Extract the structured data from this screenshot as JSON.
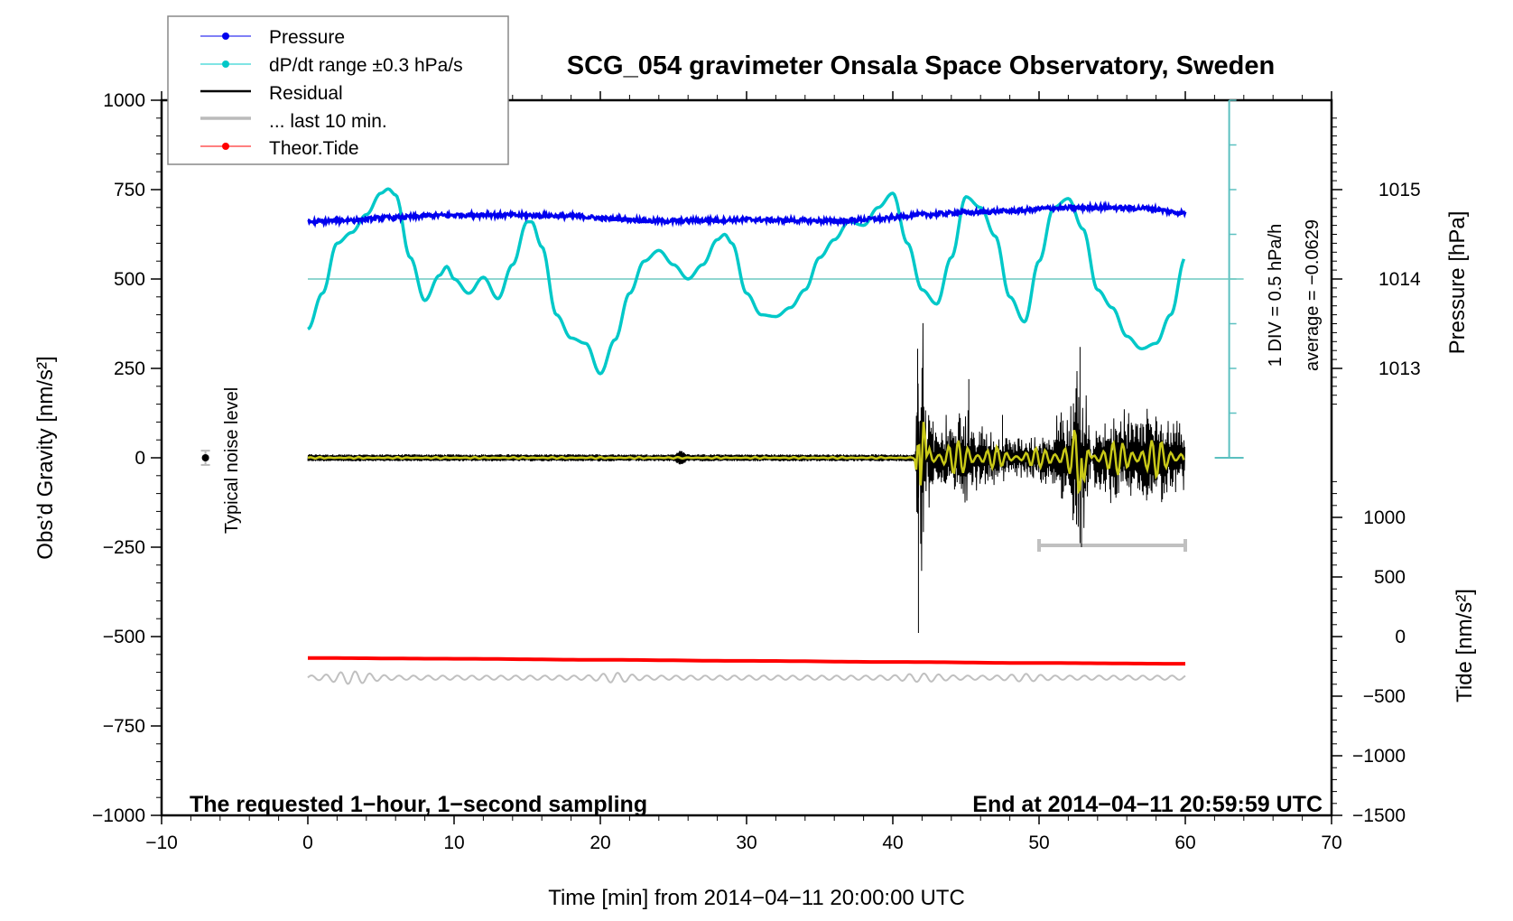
{
  "chart_data": {
    "type": "line",
    "title": "SCG_054 gravimeter Onsala Space Observatory, Sweden",
    "xlabel": "Time [min] from 2014−04−11 20:00:00 UTC",
    "ylabel_left": "Obs’d Gravity [nm/s²]",
    "ylabel_right_pressure": "Pressure [hPa]",
    "ylabel_right_tide": "Tide [nm/s²]",
    "xlim": [
      -10,
      70
    ],
    "ylim": [
      -1000,
      1000
    ],
    "x_ticks": [
      "−10",
      "0",
      "10",
      "20",
      "30",
      "40",
      "50",
      "60",
      "70"
    ],
    "y_ticks_left": [
      "1000",
      "750",
      "500",
      "250",
      "0",
      "−250",
      "−500",
      "−750",
      "−1000"
    ],
    "pressure_ticks": [
      "1015",
      "1014",
      "1013"
    ],
    "tide_ticks": [
      "1000",
      "500",
      "0",
      "−500",
      "−1000",
      "−1500"
    ],
    "annotation_left": "The requested 1−hour, 1−second sampling",
    "annotation_right": "End at 2014−04−11 20:59:59 UTC",
    "noise_label": "Typical noise level",
    "dpdt_scale_label": "1 DIV = 0.5 hPa/h",
    "dpdt_average_label": "average = −0.0629",
    "legend_position": "top-left",
    "legend": [
      {
        "label": "Pressure",
        "color": "#0000ee",
        "style": "line-dot"
      },
      {
        "label": "dP/dt range ±0.3 hPa/s",
        "color": "#00c8c8",
        "style": "line-dot"
      },
      {
        "label": "Residual",
        "color": "#000000",
        "style": "line"
      },
      {
        "label": "... last 10 min.",
        "color": "#bbbbbb",
        "style": "thick-line"
      },
      {
        "label": "Theor.Tide",
        "color": "#ff0000",
        "style": "line-dot"
      }
    ],
    "series": [
      {
        "name": "Pressure",
        "color": "#0000ee",
        "units": "gravity-axis nm/s2 (pressure ~1014.7 hPa)",
        "x": [
          0,
          3,
          6,
          9,
          12,
          15,
          18,
          21,
          24,
          27,
          30,
          33,
          36,
          39,
          42,
          45,
          48,
          51,
          54,
          57,
          60
        ],
        "y": [
          660,
          665,
          672,
          678,
          680,
          678,
          676,
          668,
          662,
          664,
          666,
          664,
          662,
          668,
          680,
          686,
          690,
          698,
          700,
          698,
          685
        ]
      },
      {
        "name": "dP/dt",
        "color": "#00c8c8",
        "units": "gravity-axis nm/s2 (zero line at 500)",
        "x": [
          0,
          1,
          2,
          3,
          4,
          5,
          5.5,
          6,
          7,
          8,
          9,
          9.5,
          10,
          11,
          12,
          13,
          14,
          15,
          15.3,
          16,
          17,
          18,
          19,
          20,
          21,
          22,
          23,
          24,
          25,
          26,
          27,
          28,
          28.5,
          29,
          30,
          31,
          32,
          33,
          34,
          35,
          36,
          37,
          38,
          39,
          40,
          41,
          42,
          43,
          44,
          45,
          46,
          47,
          48,
          49,
          50,
          51,
          52,
          53,
          54,
          55,
          56,
          57,
          58,
          59,
          60
        ],
        "y": [
          360,
          460,
          600,
          630,
          680,
          740,
          752,
          735,
          560,
          440,
          510,
          535,
          500,
          460,
          505,
          445,
          540,
          660,
          660,
          590,
          400,
          335,
          320,
          235,
          330,
          460,
          550,
          580,
          540,
          500,
          540,
          610,
          625,
          600,
          460,
          400,
          395,
          420,
          470,
          560,
          610,
          660,
          650,
          700,
          740,
          600,
          470,
          430,
          560,
          730,
          700,
          620,
          450,
          380,
          550,
          700,
          725,
          640,
          470,
          420,
          340,
          305,
          320,
          400,
          560
        ]
      },
      {
        "name": "Residual",
        "color": "#000000",
        "units": "nm/s2",
        "x": [
          0,
          41.5,
          41.7,
          42,
          42.5,
          43,
          44,
          45,
          46,
          47,
          48,
          50,
          52,
          52.8,
          53,
          54,
          56,
          58,
          59,
          60
        ],
        "y_envelope": [
          15,
          15,
          305,
          -490,
          160,
          110,
          140,
          145,
          100,
          90,
          60,
          80,
          160,
          305,
          -250,
          130,
          140,
          160,
          115,
          100
        ]
      },
      {
        "name": "... last 10 min.",
        "color": "#bbbbbb",
        "x_range": [
          50,
          60
        ],
        "y": -245
      },
      {
        "name": "Theor.Tide",
        "color": "#ff0000",
        "units": "gravity-axis nm/s2",
        "x": [
          0,
          10,
          20,
          30,
          40,
          50,
          60
        ],
        "y": [
          -560,
          -562,
          -565,
          -568,
          -571,
          -574,
          -576
        ]
      }
    ],
    "noise_level": {
      "x": -7,
      "y": 0,
      "err": 20
    }
  }
}
